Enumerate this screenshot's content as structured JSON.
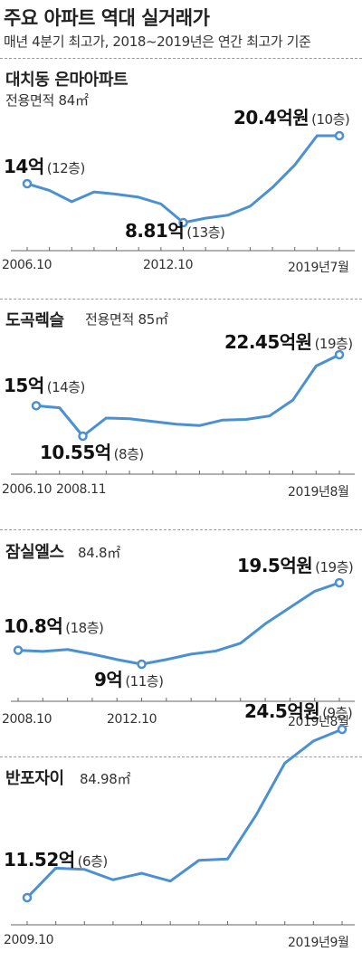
{
  "header": {
    "title": "주요 아파트 역대 실거래가",
    "subtitle": "매년 4분기 최고가, 2018~2019년은 연간 최고가 기준"
  },
  "chart_data": [
    {
      "type": "line",
      "name": "대치동 은마아파트",
      "area": "전용면적 84㎡",
      "x_tick_labels": [
        "2006.10",
        "2012.10",
        "2019년7월"
      ],
      "ylim": [
        7,
        21.5
      ],
      "values": [
        14,
        13.1,
        11.6,
        12.9,
        12.6,
        12.2,
        11.3,
        8.81,
        9.4,
        9.8,
        11.0,
        13.5,
        16.5,
        20.4,
        20.4
      ],
      "annotations": [
        {
          "index": 0,
          "value": "14억",
          "floor": "(12층)"
        },
        {
          "index": 7,
          "value": "8.81억",
          "floor": "(13층)"
        },
        {
          "index": 14,
          "value": "20.4억원",
          "floor": "(10층)"
        }
      ]
    },
    {
      "type": "line",
      "name": "도곡렉슬",
      "area": "전용면적 85㎡",
      "x_tick_labels": [
        "2006.10",
        "2008.11",
        "2019년8월"
      ],
      "ylim": [
        9,
        24
      ],
      "values": [
        15,
        14.7,
        10.55,
        13.2,
        13.1,
        12.7,
        12.3,
        12.1,
        12.9,
        13.0,
        13.5,
        15.8,
        20.8,
        22.45
      ],
      "annotations": [
        {
          "index": 0,
          "value": "15억",
          "floor": "(14층)"
        },
        {
          "index": 2,
          "value": "10.55억",
          "floor": "(8층)"
        },
        {
          "index": 13,
          "value": "22.45억원",
          "floor": "(19층)"
        }
      ]
    },
    {
      "type": "line",
      "name": "잠실엘스",
      "area": "84.8㎡",
      "x_tick_labels": [
        "2008.10",
        "2012.10",
        "2019년8월"
      ],
      "ylim": [
        7.5,
        21
      ],
      "values": [
        10.8,
        10.65,
        10.9,
        10.3,
        9.6,
        9.0,
        9.6,
        10.3,
        10.7,
        11.7,
        14.2,
        16.3,
        18.4,
        19.5
      ],
      "annotations": [
        {
          "index": 0,
          "value": "10.8억",
          "floor": "(18층)"
        },
        {
          "index": 5,
          "value": "9억",
          "floor": "(11층)"
        },
        {
          "index": 13,
          "value": "19.5억원",
          "floor": "(19층)"
        }
      ]
    },
    {
      "type": "line",
      "name": "반포자이",
      "area": "84.98㎡",
      "x_tick_labels": [
        "2009.10",
        "2019년9월"
      ],
      "ylim": [
        9.5,
        26
      ],
      "values": [
        11.52,
        13.8,
        13.7,
        12.9,
        13.4,
        12.8,
        14.4,
        14.5,
        17.9,
        21.9,
        23.6,
        24.5
      ],
      "annotations": [
        {
          "index": 0,
          "value": "11.52억",
          "floor": "(6층)"
        },
        {
          "index": 11,
          "value": "24.5억원",
          "floor": "(9층)"
        }
      ]
    }
  ]
}
